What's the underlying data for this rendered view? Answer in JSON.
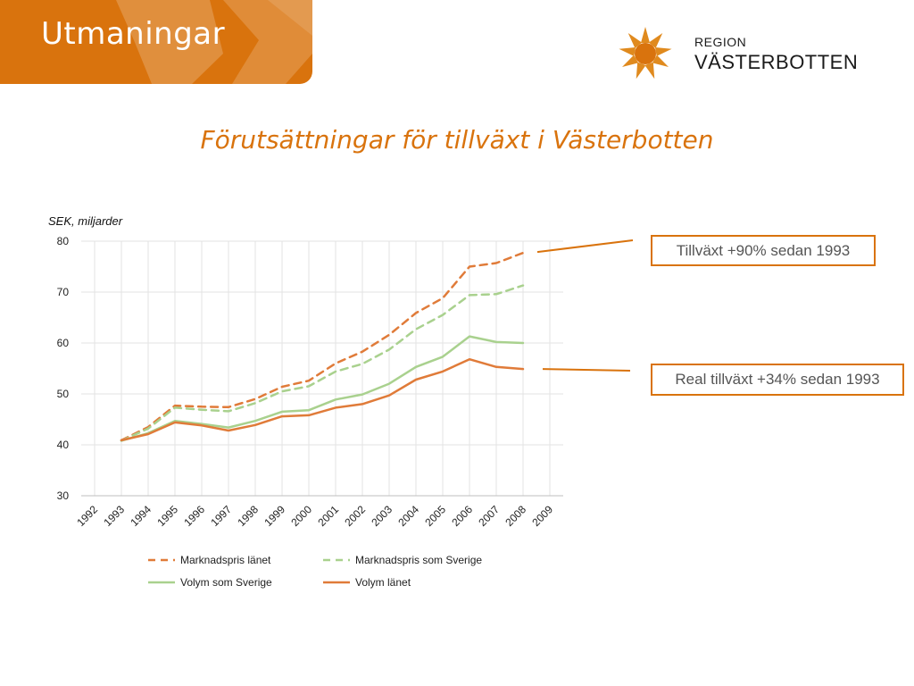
{
  "header": {
    "title": "Utmaningar"
  },
  "logo": {
    "line1": "REGION",
    "line2": "VÄSTERBOTTEN"
  },
  "slide": {
    "title": "Förutsättningar för tillväxt i Västerbotten"
  },
  "callouts": {
    "growth": "Tillväxt +90% sedan 1993",
    "real_growth": "Real tillväxt +34% sedan 1993"
  },
  "colors": {
    "accent": "#d9730d",
    "orange_line": "#e07b39",
    "green_line": "#a9d18e"
  },
  "chart_data": {
    "type": "line",
    "ylabel": "SEK, miljarder",
    "ylim": [
      30,
      80
    ],
    "yticks": [
      30,
      40,
      50,
      60,
      70,
      80
    ],
    "x_categories": [
      "1992",
      "1993",
      "1994",
      "1995",
      "1996",
      "1997",
      "1998",
      "1999",
      "2000",
      "2001",
      "2002",
      "2003",
      "2004",
      "2005",
      "2006",
      "2007",
      "2008",
      "2009"
    ],
    "grid": true,
    "legend_position": "bottom",
    "series": [
      {
        "name": "Marknadspris länet",
        "style": "dashed",
        "color": "#e07b39",
        "x": [
          "1993",
          "1994",
          "1995",
          "1996",
          "1997",
          "1998",
          "1999",
          "2000",
          "2001",
          "2002",
          "2003",
          "2004",
          "2005",
          "2006",
          "2007",
          "2008"
        ],
        "values": [
          40.9,
          43.5,
          47.7,
          47.5,
          47.4,
          49.0,
          51.4,
          52.6,
          56.0,
          58.3,
          61.6,
          65.9,
          68.8,
          75.0,
          75.7,
          77.7
        ]
      },
      {
        "name": "Marknadspris som Sverige",
        "style": "dashed",
        "color": "#a9d18e",
        "x": [
          "1993",
          "1994",
          "1995",
          "1996",
          "1997",
          "1998",
          "1999",
          "2000",
          "2001",
          "2002",
          "2003",
          "2004",
          "2005",
          "2006",
          "2007",
          "2008"
        ],
        "values": [
          40.8,
          43.2,
          47.3,
          46.9,
          46.6,
          48.2,
          50.5,
          51.5,
          54.4,
          55.9,
          58.7,
          62.7,
          65.5,
          69.4,
          69.6,
          71.3
        ]
      },
      {
        "name": "Volym som Sverige",
        "style": "solid",
        "color": "#a9d18e",
        "x": [
          "1993",
          "1994",
          "1995",
          "1996",
          "1997",
          "1998",
          "1999",
          "2000",
          "2001",
          "2002",
          "2003",
          "2004",
          "2005",
          "2006",
          "2007",
          "2008"
        ],
        "values": [
          40.8,
          42.3,
          44.7,
          44.1,
          43.4,
          44.7,
          46.5,
          46.8,
          48.9,
          49.9,
          52.0,
          55.3,
          57.3,
          61.3,
          60.2,
          60.0
        ]
      },
      {
        "name": "Volym länet",
        "style": "solid",
        "color": "#e07b39",
        "x": [
          "1993",
          "1994",
          "1995",
          "1996",
          "1997",
          "1998",
          "1999",
          "2000",
          "2001",
          "2002",
          "2003",
          "2004",
          "2005",
          "2006",
          "2007",
          "2008"
        ],
        "values": [
          40.9,
          42.1,
          44.4,
          43.8,
          42.8,
          43.9,
          45.6,
          45.8,
          47.3,
          48.0,
          49.7,
          52.8,
          54.4,
          56.8,
          55.3,
          54.9
        ]
      }
    ]
  }
}
